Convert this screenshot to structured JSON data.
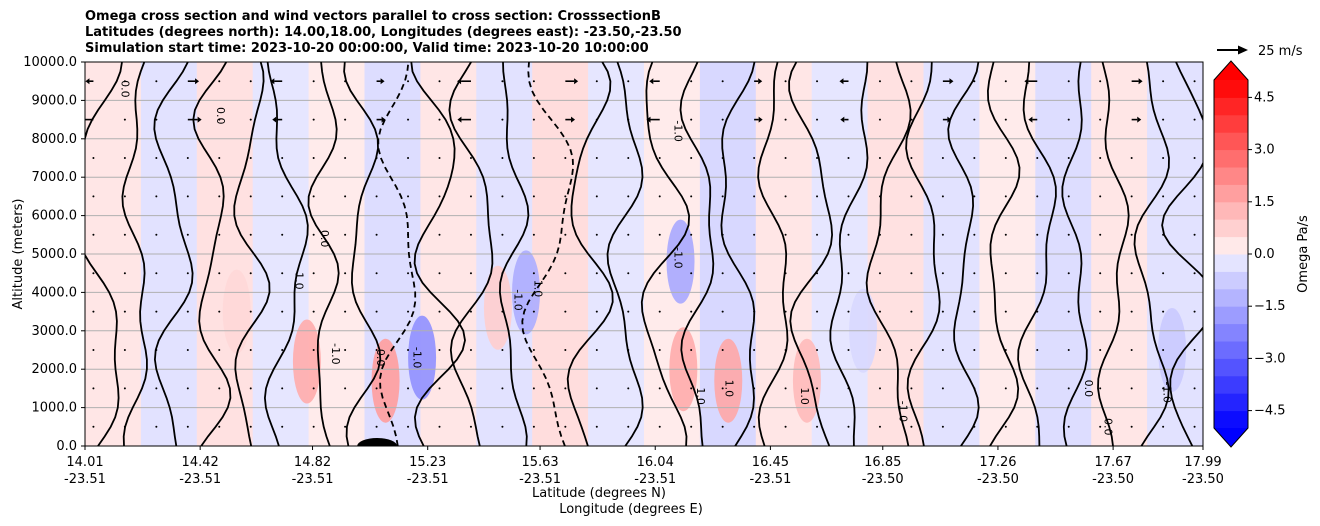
{
  "chart_data": {
    "type": "contour",
    "title_lines": [
      "Omega cross section and wind vectors parallel to cross section: CrosssectionB",
      "Latitudes (degrees north): 14.00,18.00, Longitudes (degrees east): -23.50,-23.50",
      "Simulation start time: 2023-10-20 00:00:00, Valid time: 2023-10-20 10:00:00"
    ],
    "ylabel": "Altitude (meters)",
    "xlabel_lines": [
      "Latitude (degrees N)",
      "Longitude (degrees E)"
    ],
    "ylim": [
      0,
      10000
    ],
    "y_ticks": [
      0,
      1000,
      2000,
      3000,
      4000,
      5000,
      6000,
      7000,
      8000,
      9000,
      10000
    ],
    "y_tick_labels": [
      "0.0",
      "1000.0",
      "2000.0",
      "3000.0",
      "4000.0",
      "5000.0",
      "6000.0",
      "7000.0",
      "8000.0",
      "9000.0",
      "10000.0"
    ],
    "xlim": [
      14.01,
      17.99
    ],
    "x_ticks": [
      {
        "lat": 14.01,
        "lat_label": "14.01",
        "lon_label": "-23.51"
      },
      {
        "lat": 14.42,
        "lat_label": "14.42",
        "lon_label": "-23.51"
      },
      {
        "lat": 14.82,
        "lat_label": "14.82",
        "lon_label": "-23.51"
      },
      {
        "lat": 15.23,
        "lat_label": "15.23",
        "lon_label": "-23.51"
      },
      {
        "lat": 15.63,
        "lat_label": "15.63",
        "lon_label": "-23.51"
      },
      {
        "lat": 16.04,
        "lat_label": "16.04",
        "lon_label": "-23.51"
      },
      {
        "lat": 16.45,
        "lat_label": "16.45",
        "lon_label": "-23.51"
      },
      {
        "lat": 16.85,
        "lat_label": "16.85",
        "lon_label": "-23.50"
      },
      {
        "lat": 17.26,
        "lat_label": "17.26",
        "lon_label": "-23.50"
      },
      {
        "lat": 17.67,
        "lat_label": "17.67",
        "lon_label": "-23.50"
      },
      {
        "lat": 17.99,
        "lat_label": "17.99",
        "lon_label": "-23.50"
      }
    ],
    "colorbar": {
      "label": "Omega Pa/s",
      "range": [
        -5,
        5
      ],
      "ticks": [
        4.5,
        3.0,
        1.5,
        0.0,
        -1.5,
        -3.0,
        -4.5
      ],
      "tick_labels": [
        "4.5",
        "3.0",
        "1.5",
        "0.0",
        "−1.5",
        "−3.0",
        "−4.5"
      ],
      "levels": 20,
      "extend": "both"
    },
    "wind_key": "25 m/s",
    "contour_levels": [
      -1.0,
      0.0,
      1.0
    ],
    "omega_regions": [
      {
        "lat": 14.55,
        "alt": 3500,
        "omega": 0.6
      },
      {
        "lat": 14.8,
        "alt": 2200,
        "omega": 1.5
      },
      {
        "lat": 15.08,
        "alt": 1700,
        "omega": 1.8
      },
      {
        "lat": 15.21,
        "alt": 2300,
        "omega": -2.0
      },
      {
        "lat": 15.48,
        "alt": 3600,
        "omega": 0.8
      },
      {
        "lat": 15.58,
        "alt": 4000,
        "omega": -1.4
      },
      {
        "lat": 16.13,
        "alt": 4800,
        "omega": -1.5
      },
      {
        "lat": 16.14,
        "alt": 2000,
        "omega": 1.5
      },
      {
        "lat": 16.3,
        "alt": 1700,
        "omega": 1.6
      },
      {
        "lat": 16.58,
        "alt": 1700,
        "omega": 1.2
      },
      {
        "lat": 16.78,
        "alt": 3000,
        "omega": -0.5
      },
      {
        "lat": 17.88,
        "alt": 2500,
        "omega": -0.8
      }
    ],
    "contour_labels": [
      {
        "lat": 14.15,
        "alt": 9300,
        "text": "0.0"
      },
      {
        "lat": 14.49,
        "alt": 8600,
        "text": "0.0"
      },
      {
        "lat": 14.77,
        "alt": 4300,
        "text": "1.0"
      },
      {
        "lat": 14.86,
        "alt": 5400,
        "text": "0.0"
      },
      {
        "lat": 14.9,
        "alt": 2400,
        "text": "-1.0"
      },
      {
        "lat": 15.06,
        "alt": 2300,
        "text": "0.0"
      },
      {
        "lat": 15.19,
        "alt": 2300,
        "text": "-1.0"
      },
      {
        "lat": 15.55,
        "alt": 3800,
        "text": "-1.0"
      },
      {
        "lat": 15.62,
        "alt": 4100,
        "text": "1.0"
      },
      {
        "lat": 16.12,
        "alt": 8200,
        "text": "-1.0"
      },
      {
        "lat": 16.12,
        "alt": 4900,
        "text": "-1.0"
      },
      {
        "lat": 16.2,
        "alt": 1300,
        "text": "1.0"
      },
      {
        "lat": 16.3,
        "alt": 1500,
        "text": "1.0"
      },
      {
        "lat": 16.57,
        "alt": 1300,
        "text": "1.0"
      },
      {
        "lat": 16.92,
        "alt": 900,
        "text": "-1.0"
      },
      {
        "lat": 17.58,
        "alt": 1500,
        "text": "0.0"
      },
      {
        "lat": 17.86,
        "alt": 1400,
        "text": "-1.0"
      },
      {
        "lat": 17.65,
        "alt": 500,
        "text": "0.0"
      }
    ]
  }
}
